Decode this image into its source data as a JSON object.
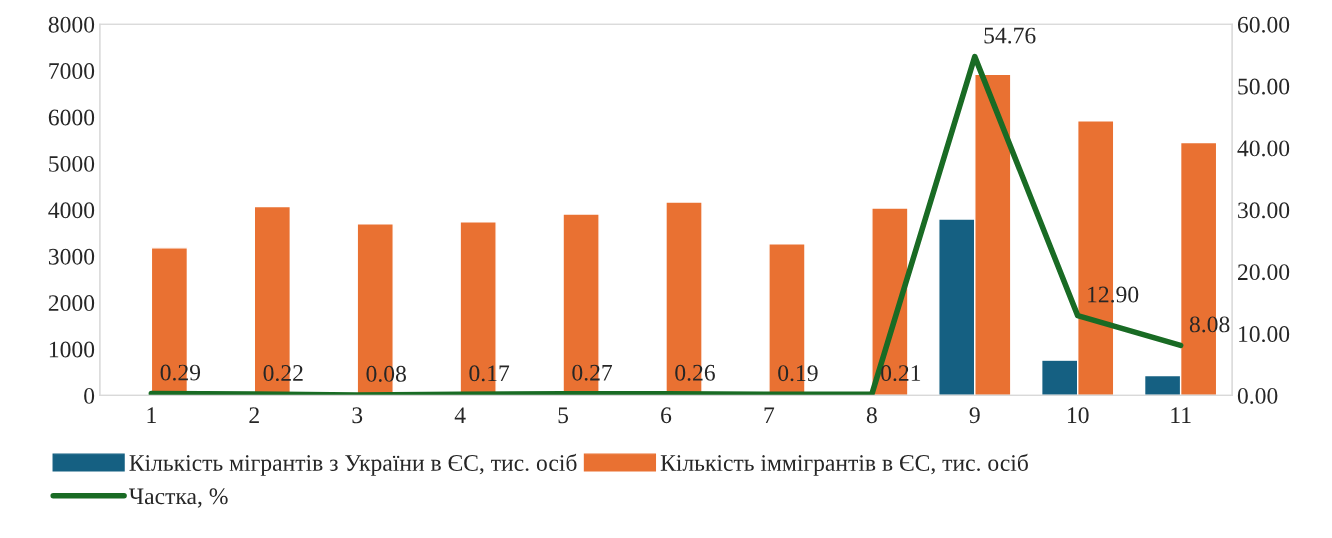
{
  "chart_data": {
    "type": "bar",
    "categories": [
      "1",
      "2",
      "3",
      "4",
      "5",
      "6",
      "7",
      "8",
      "9",
      "10",
      "11"
    ],
    "series": [
      {
        "name": "Кількість мігрантів з України в ЄС, тис. осіб",
        "color": "#156082",
        "values": [
          null,
          null,
          null,
          null,
          null,
          null,
          null,
          null,
          3800,
          760,
          430
        ]
      },
      {
        "name": "Кількість іммігрантів в ЄС, тис. осіб",
        "color": "#e97132",
        "values": [
          3180,
          4070,
          3700,
          3740,
          3910,
          4170,
          3270,
          4040,
          6920,
          5920,
          5450
        ]
      },
      {
        "name": "Частка, %",
        "type": "line",
        "axis": "y2",
        "color": "#196b24",
        "values": [
          0.29,
          0.22,
          0.08,
          0.17,
          0.27,
          0.26,
          0.19,
          0.21,
          54.76,
          12.9,
          8.08
        ],
        "value_labels": [
          "0.29",
          "0.22",
          "0.08",
          "0.17",
          "0.27",
          "0.26",
          "0.19",
          "0.21",
          "54.76",
          "12.90",
          "8.08"
        ]
      }
    ],
    "ylim": [
      0,
      8000
    ],
    "yticks": [
      0,
      1000,
      2000,
      3000,
      4000,
      5000,
      6000,
      7000,
      8000
    ],
    "y2lim": [
      0,
      60
    ],
    "y2ticks": [
      {
        "value": 0,
        "label": "0.00"
      },
      {
        "value": 10,
        "label": "10.00"
      },
      {
        "value": 20,
        "label": "20.00"
      },
      {
        "value": 30,
        "label": "30.00"
      },
      {
        "value": 40,
        "label": "40.00"
      },
      {
        "value": 50,
        "label": "50.00"
      },
      {
        "value": 60,
        "label": "60.00"
      }
    ],
    "grid": false,
    "legend": "bottom",
    "marker": "none",
    "line_style": "solid"
  }
}
